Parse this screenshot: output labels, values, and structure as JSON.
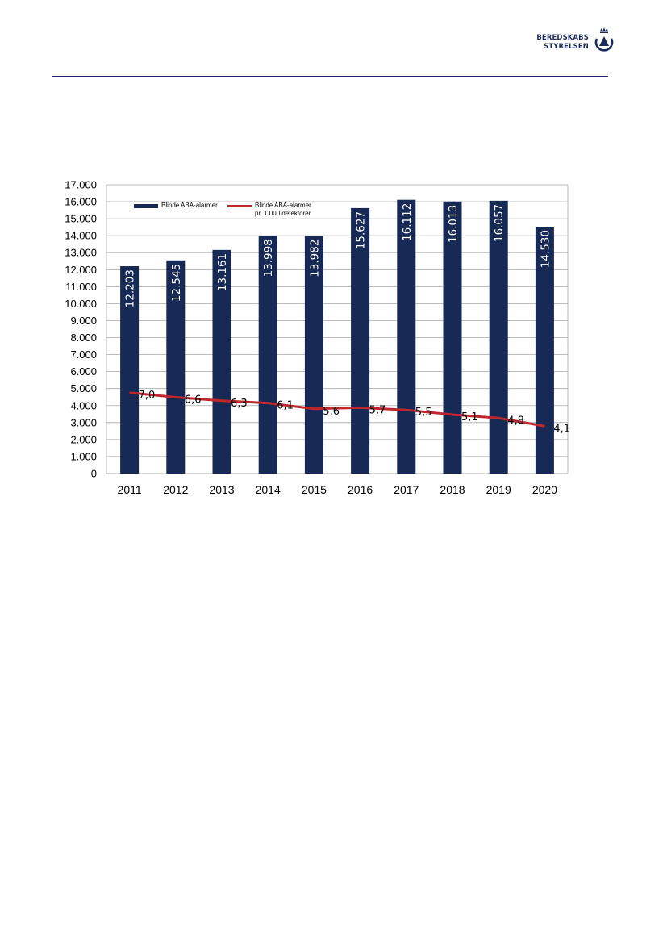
{
  "header": {
    "logo_line1": "BEREDSKABS",
    "logo_line2": "STYRELSEN",
    "logo_icon": "crown-triangle-emblem-icon"
  },
  "colors": {
    "bar": "#172a56",
    "line": "#c0272d",
    "grid": "#a6a6a6",
    "rule": "#1b2a5c"
  },
  "chart_data": {
    "type": "bar",
    "categories": [
      "2011",
      "2012",
      "2013",
      "2014",
      "2015",
      "2016",
      "2017",
      "2018",
      "2019",
      "2020"
    ],
    "ylim": [
      0,
      17000
    ],
    "y_ticks": [
      "0",
      "1.000",
      "2.000",
      "3.000",
      "4.000",
      "5.000",
      "6.000",
      "7.000",
      "8.000",
      "9.000",
      "10.000",
      "11.000",
      "12.000",
      "13.000",
      "14.000",
      "15.000",
      "16.000",
      "17.000"
    ],
    "grid": true,
    "legend_position": "top-left",
    "series": [
      {
        "name": "Blinde ABA-alarmer",
        "type": "bar",
        "values": [
          12203,
          12545,
          13161,
          13998,
          13982,
          15627,
          16112,
          16013,
          16057,
          14530
        ],
        "labels": [
          "12.203",
          "12.545",
          "13.161",
          "13.998",
          "13.982",
          "15.627",
          "16.112",
          "16.013",
          "16.057",
          "14.530"
        ]
      },
      {
        "name": "Blinde ABA-alarmer\npr. 1.000 detektorer",
        "type": "line",
        "values": [
          7.0,
          6.6,
          6.3,
          6.1,
          5.6,
          5.7,
          5.5,
          5.1,
          4.8,
          4.1
        ],
        "labels": [
          "7,0",
          "6,6",
          "6,3",
          "6,1",
          "5,6",
          "5,7",
          "5,5",
          "5,1",
          "4,8",
          "4,1"
        ]
      }
    ]
  }
}
